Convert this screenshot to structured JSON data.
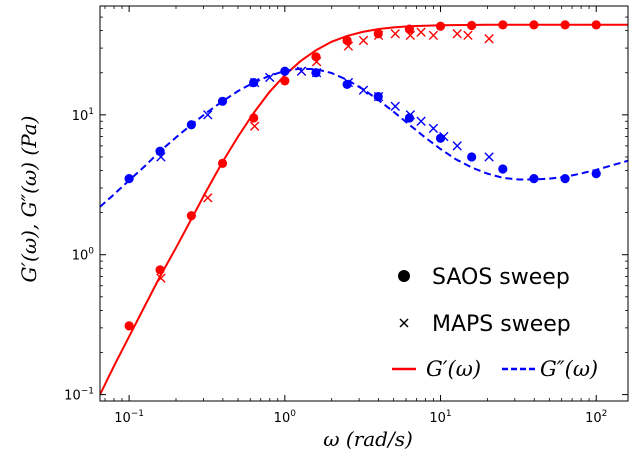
{
  "chart_data": {
    "type": "scatter",
    "title": "",
    "xlabel": "ω (rad/s)",
    "ylabel": "G′(ω), G″(ω) (Pa)",
    "xscale": "log",
    "yscale": "log",
    "xlim": [
      0.065,
      160
    ],
    "ylim": [
      0.09,
      60
    ],
    "x_ticks": [
      {
        "value": 0.1,
        "base": "10",
        "exp": "−1"
      },
      {
        "value": 1,
        "base": "10",
        "exp": "0"
      },
      {
        "value": 10,
        "base": "10",
        "exp": "1"
      },
      {
        "value": 100,
        "base": "10",
        "exp": "2"
      }
    ],
    "y_ticks": [
      {
        "value": 0.1,
        "base": "10",
        "exp": "−1"
      },
      {
        "value": 1,
        "base": "10",
        "exp": "0"
      },
      {
        "value": 10,
        "base": "10",
        "exp": "1"
      }
    ],
    "grid": false,
    "legend": {
      "placement": "bottom-right",
      "entries": [
        {
          "label": "SAOS sweep",
          "marker": "dot"
        },
        {
          "label": "MAPS sweep",
          "marker": "x"
        }
      ],
      "line_entries": [
        {
          "label": "G′(ω)",
          "style": "solid"
        },
        {
          "label": "G″(ω)",
          "style": "dashed"
        }
      ]
    },
    "series": [
      {
        "kind": "points",
        "marker": "dot",
        "color": "#ff0000",
        "x": [
          0.1,
          0.158,
          0.251,
          0.398,
          0.631,
          1.0,
          1.585,
          2.512,
          3.981,
          6.31,
          10,
          15.85,
          25.12,
          39.81,
          63.1,
          100
        ],
        "y": [
          0.31,
          0.78,
          1.9,
          4.5,
          9.5,
          17.5,
          26,
          34,
          38,
          41,
          43,
          43.5,
          44,
          44,
          44,
          44
        ]
      },
      {
        "kind": "points",
        "marker": "dot",
        "color": "#0000ff",
        "x": [
          0.1,
          0.158,
          0.251,
          0.398,
          0.631,
          1.0,
          1.585,
          2.512,
          3.981,
          6.31,
          10,
          15.85,
          25.12,
          39.81,
          63.1,
          100
        ],
        "y": [
          3.5,
          5.5,
          8.5,
          12.5,
          17,
          20.5,
          20,
          16.5,
          13.5,
          9.5,
          6.8,
          5.0,
          4.1,
          3.5,
          3.5,
          3.8
        ]
      },
      {
        "kind": "points",
        "marker": "x",
        "color": "#ff0000",
        "x": [
          0.16,
          0.32,
          0.64,
          1.28,
          1.6,
          2.56,
          3.2,
          4.0,
          5.12,
          6.4,
          7.5,
          9.0,
          12.8,
          15.0,
          20.5
        ],
        "y": [
          0.68,
          2.55,
          8.3,
          20.5,
          24,
          31,
          34,
          37,
          38,
          37,
          39,
          37,
          38,
          37,
          35
        ]
      },
      {
        "kind": "points",
        "marker": "x",
        "color": "#0000ff",
        "x": [
          0.16,
          0.32,
          0.64,
          0.8,
          1.28,
          1.6,
          2.56,
          3.2,
          4.0,
          5.12,
          6.4,
          7.5,
          9.0,
          10.5,
          12.8,
          20.5
        ],
        "y": [
          5.0,
          10,
          17,
          18.5,
          20.5,
          20,
          17,
          15,
          13.5,
          11.5,
          10,
          9,
          8,
          7,
          6,
          5
        ]
      },
      {
        "kind": "line",
        "name": "G′(ω)",
        "style": "solid",
        "color": "#ff0000",
        "x": [
          0.065,
          0.08,
          0.1,
          0.126,
          0.158,
          0.2,
          0.251,
          0.316,
          0.398,
          0.501,
          0.631,
          0.794,
          1.0,
          1.259,
          1.585,
          1.995,
          2.512,
          3.162,
          3.981,
          5.012,
          6.31,
          10,
          20,
          50,
          160
        ],
        "y": [
          0.1,
          0.16,
          0.26,
          0.43,
          0.7,
          1.12,
          1.8,
          2.9,
          4.6,
          7.0,
          10.3,
          14.5,
          19.2,
          24.2,
          29,
          33.3,
          36.7,
          39.2,
          41,
          42.2,
          43,
          43.7,
          44,
          44,
          44
        ]
      },
      {
        "kind": "line",
        "name": "G″(ω)",
        "style": "dashed",
        "color": "#0000ff",
        "x": [
          0.065,
          0.08,
          0.1,
          0.126,
          0.158,
          0.2,
          0.251,
          0.316,
          0.398,
          0.501,
          0.631,
          0.794,
          1.0,
          1.259,
          1.585,
          1.995,
          2.512,
          3.162,
          3.981,
          5.012,
          6.31,
          7.943,
          10,
          12.59,
          15.85,
          19.95,
          25.12,
          31.62,
          39.81,
          50.12,
          63.1,
          79.43,
          100,
          125.9,
          160
        ],
        "y": [
          2.2,
          2.7,
          3.4,
          4.3,
          5.5,
          6.9,
          8.5,
          10.4,
          12.5,
          14.8,
          17.0,
          19.0,
          20.6,
          21.4,
          21.2,
          19.9,
          17.8,
          15.3,
          12.8,
          10.5,
          8.5,
          6.9,
          5.7,
          4.8,
          4.2,
          3.8,
          3.55,
          3.45,
          3.45,
          3.5,
          3.6,
          3.8,
          4.05,
          4.35,
          4.7
        ]
      }
    ]
  }
}
